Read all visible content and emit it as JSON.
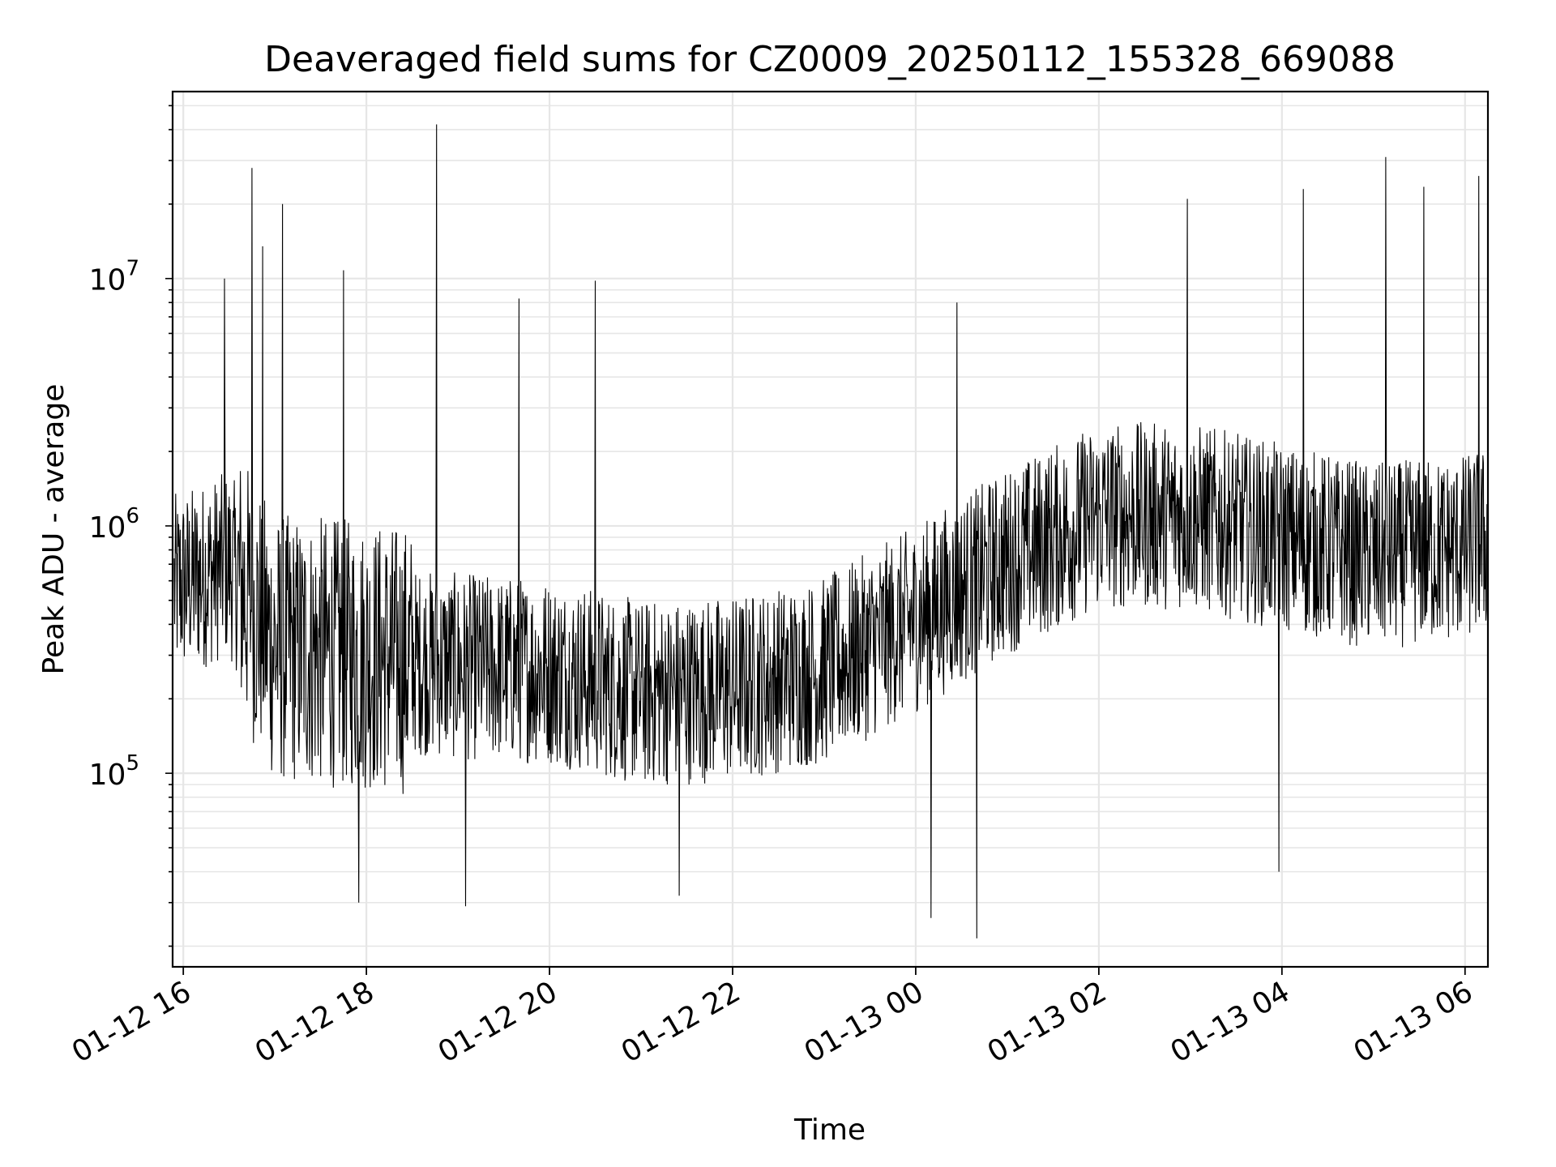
{
  "chart_data": {
    "type": "line",
    "title": "Deaveraged field sums for CZ0009_20250112_155328_669088",
    "xlabel": "Time",
    "ylabel": "Peak ADU - average",
    "yscale": "log",
    "ylim": [
      16500,
      57000000
    ],
    "xlim": [
      "2025-01-12 15:53",
      "2025-01-13 06:15"
    ],
    "grid": true,
    "line_color": "#000000",
    "grid_color": "#e6e6e6",
    "x_ticks": [
      {
        "value": "2025-01-12 16:00",
        "label": "01-12 16"
      },
      {
        "value": "2025-01-12 18:00",
        "label": "01-12 18"
      },
      {
        "value": "2025-01-12 20:00",
        "label": "01-12 20"
      },
      {
        "value": "2025-01-12 22:00",
        "label": "01-12 22"
      },
      {
        "value": "2025-01-13 00:00",
        "label": "01-13 00"
      },
      {
        "value": "2025-01-13 02:00",
        "label": "01-13 02"
      },
      {
        "value": "2025-01-13 04:00",
        "label": "01-13 04"
      },
      {
        "value": "2025-01-13 06:00",
        "label": "01-13 06"
      }
    ],
    "y_ticks": [
      {
        "value": 100000,
        "base": "10",
        "exp": "5"
      },
      {
        "value": 1000000,
        "base": "10",
        "exp": "6"
      },
      {
        "value": 10000000,
        "base": "10",
        "exp": "7"
      }
    ],
    "trend": [
      {
        "t": "2025-01-12 15:53",
        "v": 560000
      },
      {
        "t": "2025-01-12 16:30",
        "v": 700000
      },
      {
        "t": "2025-01-12 17:00",
        "v": 320000
      },
      {
        "t": "2025-01-12 18:00",
        "v": 300000
      },
      {
        "t": "2025-01-12 19:00",
        "v": 270000
      },
      {
        "t": "2025-01-12 20:00",
        "v": 260000
      },
      {
        "t": "2025-01-12 21:00",
        "v": 210000
      },
      {
        "t": "2025-01-12 22:00",
        "v": 220000
      },
      {
        "t": "2025-01-12 23:00",
        "v": 260000
      },
      {
        "t": "2025-01-13 00:00",
        "v": 420000
      },
      {
        "t": "2025-01-13 01:00",
        "v": 720000
      },
      {
        "t": "2025-01-13 02:00",
        "v": 1100000
      },
      {
        "t": "2025-01-13 03:00",
        "v": 1100000
      },
      {
        "t": "2025-01-13 04:00",
        "v": 900000
      },
      {
        "t": "2025-01-13 05:00",
        "v": 750000
      },
      {
        "t": "2025-01-13 06:00",
        "v": 820000
      },
      {
        "t": "2025-01-13 06:15",
        "v": 880000
      }
    ],
    "spikes_high": [
      {
        "t": "2025-01-12 16:27",
        "v": 10000000
      },
      {
        "t": "2025-01-12 16:45",
        "v": 28000000
      },
      {
        "t": "2025-01-12 17:05",
        "v": 20000000
      },
      {
        "t": "2025-01-12 16:52",
        "v": 13500000
      },
      {
        "t": "2025-01-12 17:45",
        "v": 10800000
      },
      {
        "t": "2025-01-12 18:46",
        "v": 42000000
      },
      {
        "t": "2025-01-12 19:40",
        "v": 8300000
      },
      {
        "t": "2025-01-12 20:30",
        "v": 9800000
      },
      {
        "t": "2025-01-13 00:27",
        "v": 8000000
      },
      {
        "t": "2025-01-13 02:58",
        "v": 21000000
      },
      {
        "t": "2025-01-13 04:14",
        "v": 23000000
      },
      {
        "t": "2025-01-13 05:08",
        "v": 31000000
      },
      {
        "t": "2025-01-13 05:33",
        "v": 23500000
      },
      {
        "t": "2025-01-13 06:09",
        "v": 26000000
      }
    ],
    "spikes_low": [
      {
        "t": "2025-01-12 17:55",
        "v": 30000
      },
      {
        "t": "2025-01-12 19:05",
        "v": 29000
      },
      {
        "t": "2025-01-12 21:25",
        "v": 32000
      },
      {
        "t": "2025-01-13 00:10",
        "v": 26000
      },
      {
        "t": "2025-01-13 00:40",
        "v": 21500
      },
      {
        "t": "2025-01-13 03:58",
        "v": 40000
      }
    ]
  }
}
